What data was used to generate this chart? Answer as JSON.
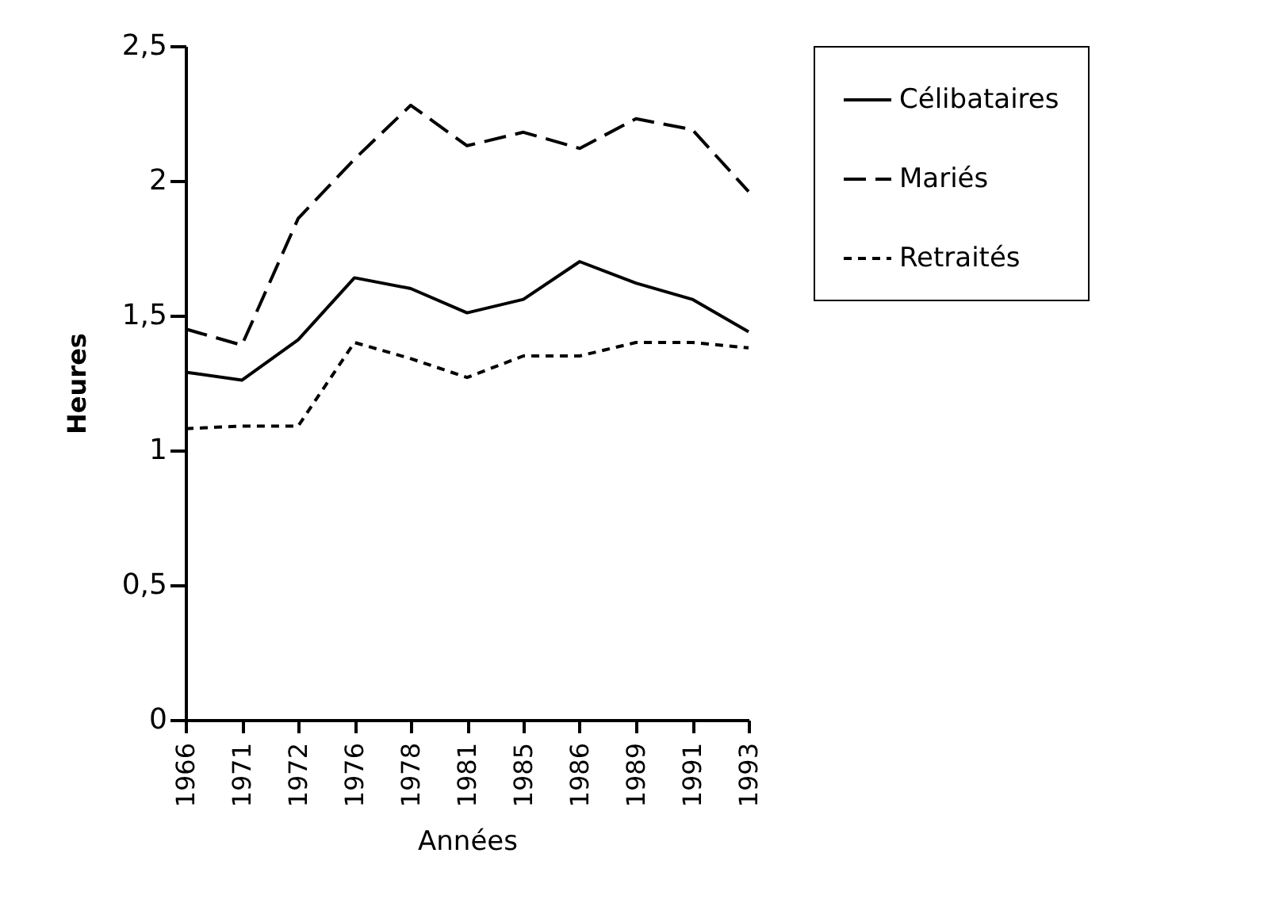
{
  "chart_data": {
    "type": "line",
    "xlabel": "Années",
    "ylabel": "Heures",
    "categories": [
      "1966",
      "1971",
      "1972",
      "1976",
      "1978",
      "1981",
      "1985",
      "1986",
      "1989",
      "1991",
      "1993"
    ],
    "series": [
      {
        "name": "Célibataires",
        "color": "#000000",
        "line_style": "solid",
        "values": [
          1.29,
          1.26,
          1.41,
          1.64,
          1.6,
          1.51,
          1.56,
          1.7,
          1.62,
          1.56,
          1.44
        ]
      },
      {
        "name": "Mariés",
        "color": "#000000",
        "line_style": "dashed",
        "values": [
          1.45,
          1.39,
          1.86,
          2.08,
          2.28,
          2.13,
          2.18,
          2.12,
          2.23,
          2.19,
          1.96
        ]
      },
      {
        "name": "Retraités",
        "color": "#000000",
        "line_style": "dotted",
        "values": [
          1.08,
          1.09,
          1.09,
          1.4,
          1.34,
          1.27,
          1.35,
          1.35,
          1.4,
          1.4,
          1.38
        ]
      }
    ],
    "ylim": [
      0,
      2.5
    ],
    "yticks": [
      0,
      {
        "value": 0.5,
        "label": "0,5"
      },
      1,
      {
        "value": 1.5,
        "label": "1,5"
      },
      2,
      {
        "value": 2.5,
        "label": "2,5"
      }
    ],
    "grid": false,
    "legend": "right",
    "marker": "none"
  }
}
